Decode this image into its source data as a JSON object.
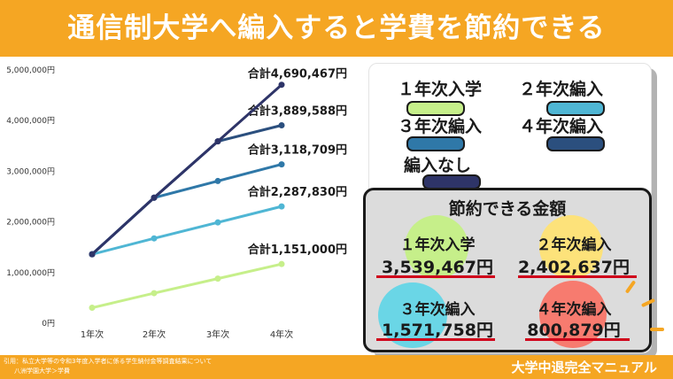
{
  "header": {
    "title": "通信制大学へ編入すると学費を節約できる"
  },
  "chart_data": {
    "type": "line",
    "categories": [
      "1年次",
      "2年次",
      "3年次",
      "4年次"
    ],
    "ylim": [
      0,
      5000000
    ],
    "yticks": [
      "0円",
      "1,000,000円",
      "2,000,000円",
      "3,000,000円",
      "4,000,000円",
      "5,000,000円"
    ],
    "series": [
      {
        "name": "1年次入学",
        "color": "#c6ef8a",
        "values": [
          287750,
          575500,
          863250,
          1151000
        ],
        "total_label": "合計1,151,000円"
      },
      {
        "name": "2年次編入",
        "color": "#4fb6d4",
        "values": [
          1343410,
          1657217,
          1972523,
          2287830
        ],
        "total_label": "合計2,287,830円"
      },
      {
        "name": "3年次編入",
        "color": "#2f78a8",
        "values": [
          1343410,
          2460730,
          2789719,
          3118709
        ],
        "total_label": "合計3,118,709円"
      },
      {
        "name": "4年次編入",
        "color": "#2b4f7e",
        "values": [
          1343410,
          2460730,
          3573120,
          3889588
        ],
        "total_label": "合計3,889,588円"
      },
      {
        "name": "編入なし",
        "color": "#2e3468",
        "values": [
          1343410,
          2460730,
          3573120,
          4690467
        ],
        "total_label": "合計4,690,467円"
      }
    ]
  },
  "savings": {
    "title": "節約できる金額",
    "items": [
      {
        "label": "１年次入学",
        "value": "3,539,467円",
        "color": "#c6ef8a"
      },
      {
        "label": "２年次編入",
        "value": "2,402,637円",
        "color": "#fde27a"
      },
      {
        "label": "３年次編入",
        "value": "1,571,758円",
        "color": "#6ad6e6"
      },
      {
        "label": "４年次編入",
        "value": "800,879円",
        "color": "#f77b6f"
      }
    ]
  },
  "legend": {
    "items": [
      {
        "label": "１年次入学",
        "color": "#c6ef8a"
      },
      {
        "label": "２年次編入",
        "color": "#4fb6d4"
      },
      {
        "label": "３年次編入",
        "color": "#2f78a8"
      },
      {
        "label": "４年次編入",
        "color": "#2b4f7e"
      },
      {
        "label": "編入なし",
        "color": "#2e3468"
      }
    ]
  },
  "footer": {
    "note1": "引用：私立大学等の令和3年度入学者に係る学生納付金等調査結果について",
    "note2": "八洲学園大学＞学費",
    "brand": "大学中退完全マニュアル"
  }
}
